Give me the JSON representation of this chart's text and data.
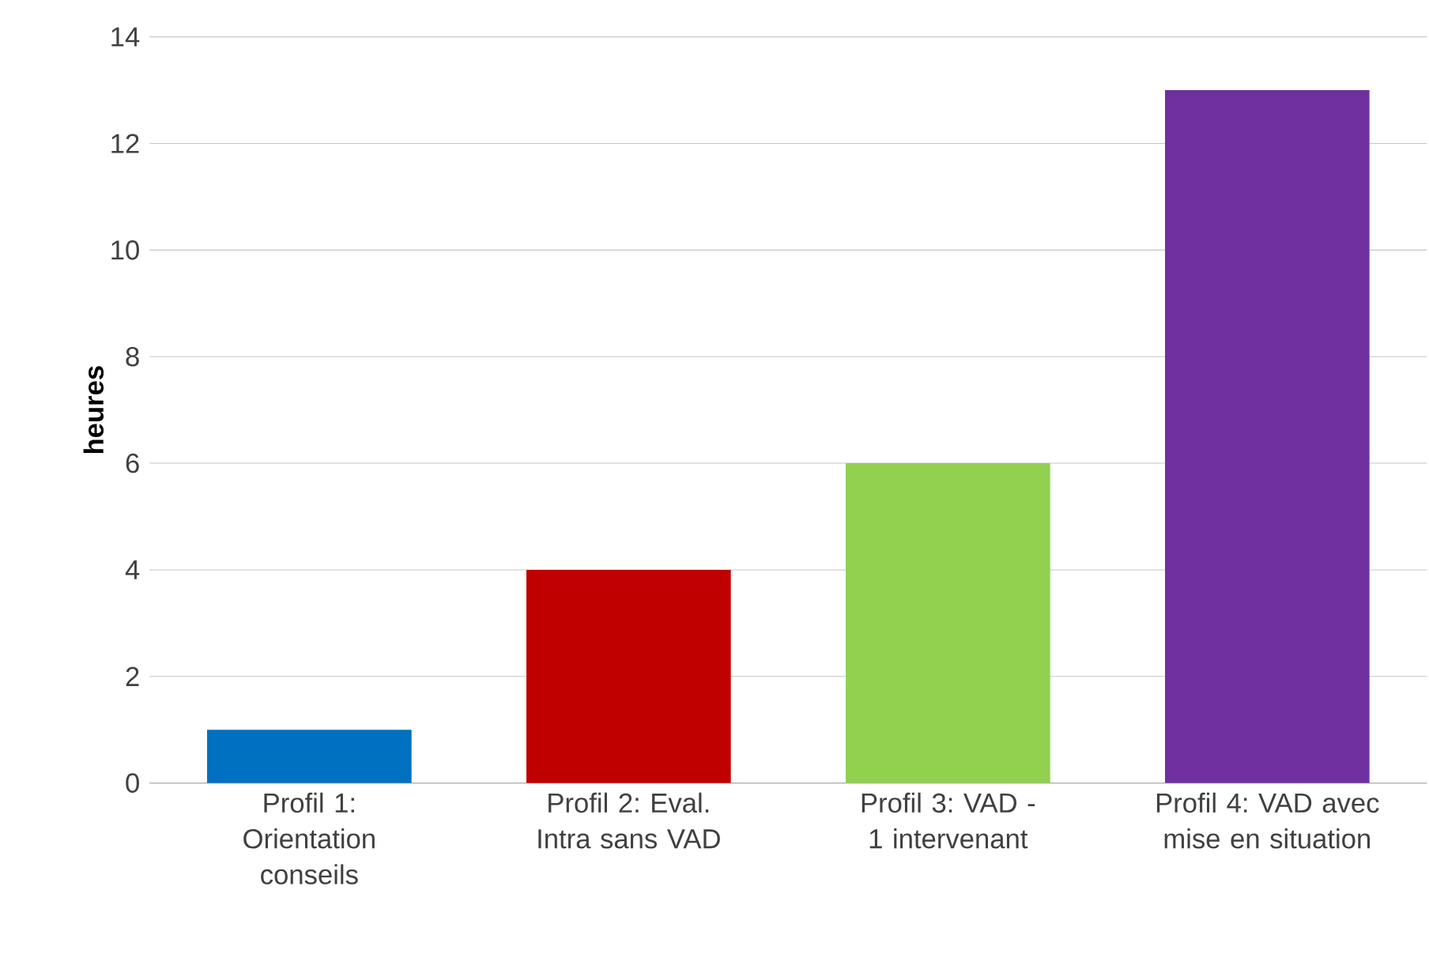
{
  "chart_data": {
    "type": "bar",
    "ylabel": "heures",
    "categories": [
      "Profil 1: Orientation conseils",
      "Profil 2: Eval. Intra sans VAD",
      "Profil 3: VAD - 1 intervenant",
      "Profil 4: VAD avec mise en situation"
    ],
    "values": [
      1,
      4,
      6,
      13
    ],
    "colors": [
      "#0070c0",
      "#c00000",
      "#92d050",
      "#7030a0"
    ],
    "ylim": [
      0,
      14
    ],
    "yticks": [
      0,
      2,
      4,
      6,
      8,
      10,
      12,
      14
    ],
    "grid": "y"
  }
}
